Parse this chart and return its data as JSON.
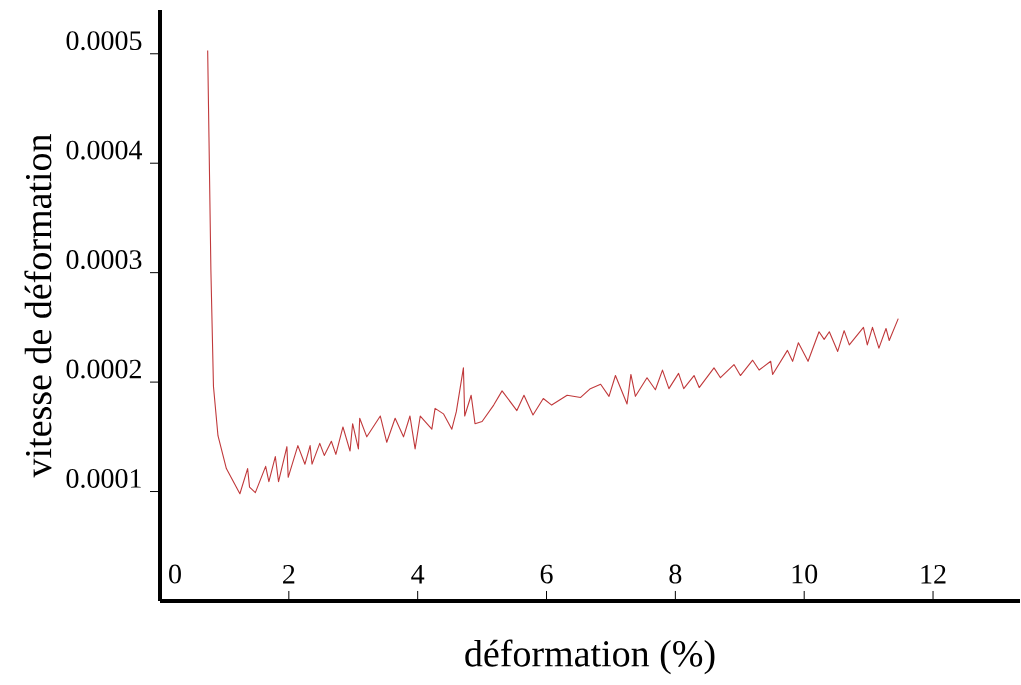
{
  "chart_data": {
    "type": "line",
    "xlabel": "déformation (%)",
    "ylabel": "vitesse de déformation",
    "xlim": [
      0,
      13.35
    ],
    "ylim": [
      0,
      0.00054
    ],
    "xticks": [
      0,
      2,
      4,
      6,
      8,
      10,
      12
    ],
    "yticks": [
      0.0001,
      0.0002,
      0.0003,
      0.0004,
      0.0005
    ],
    "grid": false,
    "marker": "none",
    "line_style": "solid",
    "series": [
      {
        "color": "#c0393b",
        "x": [
          0.74,
          0.76,
          0.79,
          0.83,
          0.9,
          1.03,
          1.24,
          1.36,
          1.39,
          1.48,
          1.64,
          1.69,
          1.79,
          1.84,
          1.97,
          1.99,
          2.14,
          2.25,
          2.33,
          2.36,
          2.48,
          2.55,
          2.66,
          2.73,
          2.84,
          2.95,
          2.99,
          3.08,
          3.1,
          3.21,
          3.42,
          3.52,
          3.65,
          3.78,
          3.88,
          3.96,
          4.04,
          4.22,
          4.27,
          4.4,
          4.53,
          4.6,
          4.71,
          4.73,
          4.83,
          4.89,
          5.0,
          5.18,
          5.31,
          5.54,
          5.65,
          5.79,
          5.95,
          6.08,
          6.32,
          6.53,
          6.68,
          6.84,
          6.97,
          7.07,
          7.25,
          7.31,
          7.38,
          7.56,
          7.69,
          7.8,
          7.9,
          8.05,
          8.13,
          8.29,
          8.37,
          8.6,
          8.7,
          8.91,
          9.01,
          9.2,
          9.3,
          9.48,
          9.51,
          9.74,
          9.82,
          9.91,
          10.06,
          10.23,
          10.31,
          10.39,
          10.52,
          10.62,
          10.7,
          10.92,
          10.98,
          11.06,
          11.16,
          11.27,
          11.32,
          11.46
        ],
        "values": [
          0.000503,
          0.000424,
          0.000302,
          0.000196,
          0.000151,
          0.000121,
          9.8e-05,
          0.000121,
          0.000104,
          9.9e-05,
          0.000123,
          0.000109,
          0.000132,
          0.000109,
          0.000141,
          0.000113,
          0.000142,
          0.000125,
          0.000142,
          0.000125,
          0.000144,
          0.000133,
          0.000146,
          0.000134,
          0.000159,
          0.000137,
          0.000162,
          0.000139,
          0.000167,
          0.00015,
          0.000169,
          0.000145,
          0.000167,
          0.00015,
          0.000169,
          0.000139,
          0.000169,
          0.000157,
          0.000176,
          0.000171,
          0.000157,
          0.000173,
          0.000213,
          0.000169,
          0.000188,
          0.000162,
          0.000164,
          0.000179,
          0.000192,
          0.000174,
          0.000188,
          0.00017,
          0.000185,
          0.000179,
          0.000188,
          0.000186,
          0.000194,
          0.000198,
          0.000187,
          0.000206,
          0.00018,
          0.000207,
          0.000187,
          0.000204,
          0.000193,
          0.000211,
          0.000194,
          0.000208,
          0.000194,
          0.000206,
          0.000195,
          0.000213,
          0.000204,
          0.000216,
          0.000206,
          0.00022,
          0.000211,
          0.000219,
          0.000207,
          0.000229,
          0.000219,
          0.000236,
          0.000219,
          0.000246,
          0.000239,
          0.000246,
          0.000228,
          0.000247,
          0.000234,
          0.00025,
          0.000234,
          0.00025,
          0.000231,
          0.000249,
          0.000238,
          0.000258
        ]
      }
    ]
  }
}
